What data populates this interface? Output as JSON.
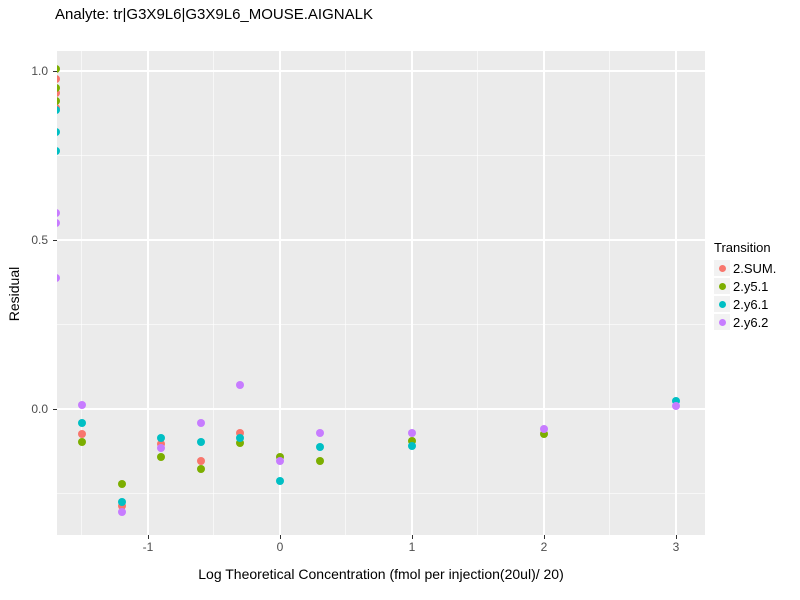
{
  "title": "Analyte: tr|G3X9L6|G3X9L6_MOUSE.AIGNALK",
  "colors": {
    "panel_bg": "#EBEBEB",
    "grid": "#FFFFFF",
    "tick_label": "#4D4D4D",
    "series_salmon": "#F8766D",
    "series_green": "#7CAE00",
    "series_teal": "#00BFC4",
    "series_purple": "#C77CFF"
  },
  "legend": {
    "title": "Transition",
    "entries": [
      {
        "label": "2.SUM.",
        "color": "#F8766D"
      },
      {
        "label": "2.y5.1",
        "color": "#7CAE00"
      },
      {
        "label": "2.y6.1",
        "color": "#00BFC4"
      },
      {
        "label": "2.y6.2",
        "color": "#C77CFF"
      }
    ]
  },
  "chart_data": {
    "type": "scatter",
    "title": "Analyte: tr|G3X9L6|G3X9L6_MOUSE.AIGNALK",
    "xlabel": "Log Theoretical Concentration (fmol per injection(20ul)/ 20)",
    "ylabel": "Residual",
    "xlim": [
      -1.689,
      3.22
    ],
    "ylim": [
      -0.373,
      1.059
    ],
    "x_major_ticks": [
      -1,
      0,
      1,
      2,
      3
    ],
    "x_tick_labels": [
      "-1",
      "0",
      "1",
      "2",
      "3"
    ],
    "x_minor_ticks": [
      -1.5,
      -0.5,
      0.5,
      1.5,
      2.5
    ],
    "y_major_ticks": [
      0.0,
      0.5,
      1.0
    ],
    "y_tick_labels": [
      "0.0",
      "0.5",
      "1.0"
    ],
    "y_minor_ticks": [
      -0.25,
      0.25,
      0.75
    ],
    "grid": true,
    "legend_position": "right",
    "legend_title": "Transition",
    "series": [
      {
        "name": "2.SUM.",
        "color": "#F8766D",
        "points": [
          [
            -1.7,
            0.975
          ],
          [
            -1.7,
            0.935
          ],
          [
            -1.7,
            0.89
          ],
          [
            -1.5,
            -0.074
          ],
          [
            -1.2,
            -0.287
          ],
          [
            -0.9,
            -0.104
          ],
          [
            -0.6,
            -0.154
          ],
          [
            -0.3,
            -0.071
          ]
        ]
      },
      {
        "name": "2.y5.1",
        "color": "#7CAE00",
        "points": [
          [
            -1.7,
            1.005
          ],
          [
            -1.7,
            0.95
          ],
          [
            -1.7,
            0.91
          ],
          [
            -1.5,
            -0.098
          ],
          [
            -1.2,
            -0.222
          ],
          [
            -0.9,
            -0.142
          ],
          [
            -0.6,
            -0.178
          ],
          [
            -0.3,
            -0.1
          ],
          [
            0,
            -0.142
          ],
          [
            0.3,
            -0.154
          ],
          [
            1,
            -0.095
          ],
          [
            2,
            -0.075
          ]
        ]
      },
      {
        "name": "2.y6.1",
        "color": "#00BFC4",
        "points": [
          [
            -1.7,
            0.885
          ],
          [
            -1.7,
            0.82
          ],
          [
            -1.7,
            0.763
          ],
          [
            -1.5,
            -0.041
          ],
          [
            -1.2,
            -0.275
          ],
          [
            -0.9,
            -0.086
          ],
          [
            -0.6,
            -0.098
          ],
          [
            -0.3,
            -0.086
          ],
          [
            0,
            -0.213
          ],
          [
            0.3,
            -0.112
          ],
          [
            1,
            -0.109
          ],
          [
            3,
            0.022
          ]
        ]
      },
      {
        "name": "2.y6.2",
        "color": "#C77CFF",
        "points": [
          [
            -1.7,
            0.58
          ],
          [
            -1.7,
            0.55
          ],
          [
            -1.7,
            0.388
          ],
          [
            -1.5,
            0.012
          ],
          [
            -1.2,
            -0.305
          ],
          [
            -0.9,
            -0.115
          ],
          [
            -0.6,
            -0.041
          ],
          [
            -0.3,
            0.071
          ],
          [
            0,
            -0.154
          ],
          [
            0.3,
            -0.071
          ],
          [
            1,
            -0.071
          ],
          [
            2,
            -0.06
          ],
          [
            3,
            0.01
          ]
        ]
      }
    ]
  }
}
